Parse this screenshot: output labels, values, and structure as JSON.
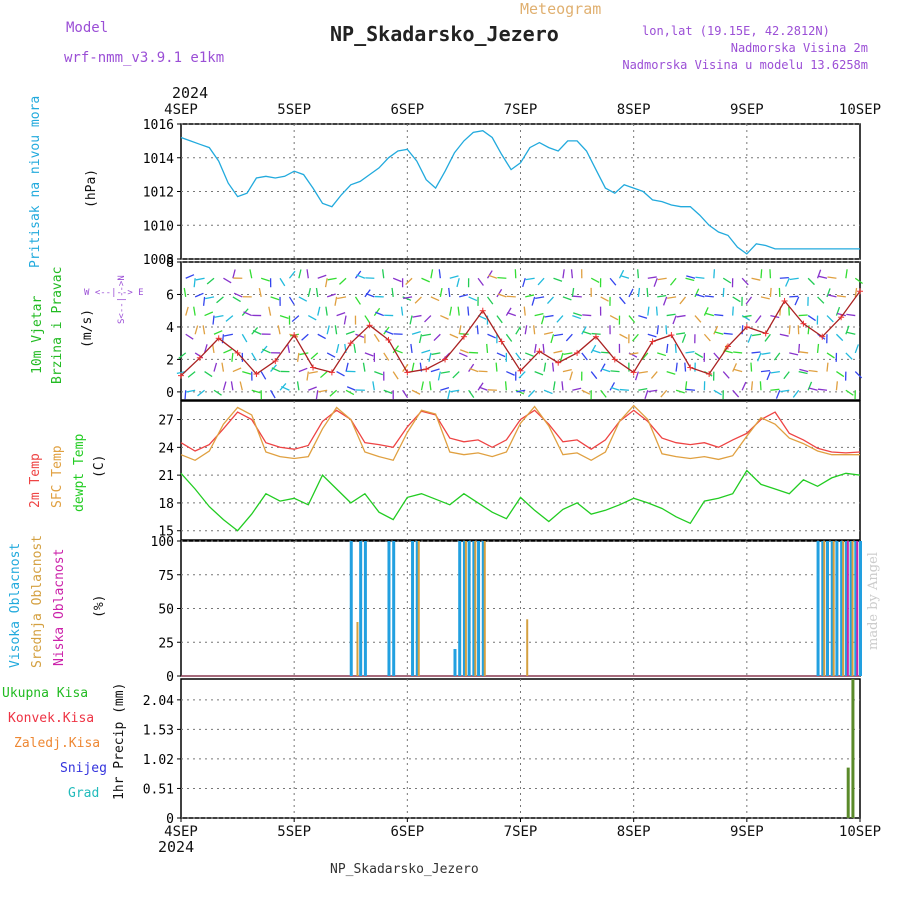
{
  "header": {
    "model_label": "Model",
    "model_name": "wrf-nmm_v3.9.1 e1km",
    "meteogram": "Meteogram",
    "station": "NP_Skadarsko_Jezero",
    "lonlat": "lon,lat (19.15E, 42.2812N)",
    "elevation": "Nadmorska Visina 2m",
    "model_elevation": "Nadmorska Visina u modelu 13.6258m"
  },
  "footer": {
    "station": "NP_Skadarsko_Jezero",
    "made_by": "made by Angel"
  },
  "time_axis": {
    "year": "2024",
    "labels": [
      "4SEP",
      "5SEP",
      "6SEP",
      "7SEP",
      "8SEP",
      "9SEP",
      "10SEP"
    ],
    "start": 0,
    "end": 144
  },
  "panels_labels": {
    "pressure": {
      "name": "Pritisak na nivou mora",
      "unit": "(hPa)",
      "color": "#22aadd"
    },
    "wind": {
      "name1": "10m Vjetar",
      "name2": "Brzina i Pravac",
      "unit": "(m/s)",
      "color": "#22bb22",
      "compass": "W <--|--> E",
      "compass_ns": "S<--|-->N"
    },
    "temp": {
      "l1": "2m Temp",
      "l2": "SFC Temp",
      "l3": "dewpt Temp",
      "unit": "(C)",
      "c1": "#ee4444",
      "c2": "#e0a040",
      "c3": "#22cc22"
    },
    "cloud": {
      "l1": "Visoka Oblacnost",
      "l2": "Srednja Oblacnost",
      "l3": "Niska Oblacnost",
      "unit": "(%)",
      "c1": "#22aadd",
      "c2": "#d4a040",
      "c3": "#cc22aa"
    },
    "precip": {
      "l1": "Ukupna Kisa",
      "l2": "Konvek.Kisa",
      "l3": "Zaledj.Kisa",
      "l4": "Snijeg",
      "l5": "Grad",
      "unit": "1hr Precip (mm)",
      "c1": "#22bb22",
      "c2": "#ee3344",
      "c3": "#ee8833",
      "c4": "#3333dd",
      "c5": "#22bbbb"
    }
  },
  "chart_data": [
    {
      "type": "line",
      "name": "pressure",
      "ylabel": "(hPa)",
      "ylim": [
        1008,
        1016
      ],
      "yticks": [
        1008,
        1010,
        1012,
        1014,
        1016
      ],
      "x": [
        0,
        2,
        4,
        6,
        8,
        10,
        12,
        14,
        16,
        18,
        20,
        22,
        24,
        26,
        28,
        30,
        32,
        34,
        36,
        38,
        40,
        42,
        44,
        46,
        48,
        50,
        52,
        54,
        56,
        58,
        60,
        62,
        64,
        66,
        68,
        70,
        72,
        74,
        76,
        78,
        80,
        82,
        84,
        86,
        88,
        90,
        92,
        94,
        96,
        98,
        100,
        102,
        104,
        106,
        108,
        110,
        112,
        114,
        116,
        118,
        120,
        122,
        124,
        126,
        128,
        130,
        132,
        134,
        136,
        138,
        140,
        142,
        144
      ],
      "series": [
        {
          "values": [
            1015.2,
            1015.0,
            1014.8,
            1014.6,
            1013.8,
            1012.5,
            1011.7,
            1011.9,
            1012.8,
            1012.9,
            1012.8,
            1012.9,
            1013.2,
            1013.0,
            1012.2,
            1011.3,
            1011.1,
            1011.8,
            1012.4,
            1012.6,
            1013.0,
            1013.4,
            1014.0,
            1014.4,
            1014.5,
            1013.8,
            1012.7,
            1012.2,
            1013.2,
            1014.3,
            1015.0,
            1015.5,
            1015.6,
            1015.2,
            1014.2,
            1013.3,
            1013.7,
            1014.6,
            1014.9,
            1014.6,
            1014.4,
            1015.0,
            1015.0,
            1014.4,
            1013.3,
            1012.2,
            1011.9,
            1012.4,
            1012.2,
            1012.0,
            1011.5,
            1011.4,
            1011.2,
            1011.1,
            1011.1,
            1010.6,
            1010.0,
            1009.6,
            1009.4,
            1008.7,
            1008.3,
            1008.9,
            1008.8,
            1008.6,
            1008.6,
            1008.6,
            1008.6,
            1008.6,
            1008.6,
            1008.6,
            1008.6,
            1008.6,
            1008.6
          ]
        }
      ]
    },
    {
      "type": "line",
      "name": "wind",
      "ylabel": "(m/s)",
      "ylim": [
        -0.5,
        8
      ],
      "yticks": [
        0,
        2,
        4,
        6,
        8
      ],
      "x": [
        0,
        4,
        8,
        12,
        16,
        20,
        24,
        28,
        32,
        36,
        40,
        44,
        48,
        52,
        56,
        60,
        64,
        68,
        72,
        76,
        80,
        84,
        88,
        92,
        96,
        100,
        104,
        108,
        112,
        116,
        120,
        124,
        128,
        132,
        136,
        140,
        144
      ],
      "series": [
        {
          "values": [
            1.0,
            2.1,
            3.3,
            2.4,
            1.1,
            1.9,
            3.5,
            1.5,
            1.2,
            3.0,
            4.1,
            3.2,
            1.2,
            1.4,
            2.0,
            3.4,
            5.0,
            3.1,
            1.3,
            2.5,
            1.8,
            2.4,
            3.4,
            2.0,
            1.2,
            3.1,
            3.5,
            1.5,
            1.1,
            2.8,
            4.0,
            3.6,
            5.6,
            4.2,
            3.4,
            4.6,
            6.2
          ]
        }
      ]
    },
    {
      "type": "line",
      "name": "temperature",
      "ylabel": "(C)",
      "ylim": [
        14,
        29
      ],
      "yticks": [
        15,
        18,
        21,
        24,
        27
      ],
      "x": [
        0,
        3,
        6,
        9,
        12,
        15,
        18,
        21,
        24,
        27,
        30,
        33,
        36,
        39,
        42,
        45,
        48,
        51,
        54,
        57,
        60,
        63,
        66,
        69,
        72,
        75,
        78,
        81,
        84,
        87,
        90,
        93,
        96,
        99,
        102,
        105,
        108,
        111,
        114,
        117,
        120,
        123,
        126,
        129,
        132,
        135,
        138,
        141,
        144
      ],
      "series": [
        {
          "name": "2m Temp",
          "values": [
            24.5,
            23.6,
            24.3,
            26.0,
            27.8,
            27.0,
            24.5,
            24.0,
            23.8,
            24.2,
            26.8,
            28.0,
            27.0,
            24.5,
            24.3,
            24.0,
            26.2,
            27.9,
            27.5,
            25.0,
            24.6,
            24.8,
            24.0,
            24.8,
            27.0,
            28.0,
            26.5,
            24.6,
            24.8,
            23.8,
            24.8,
            26.8,
            28.0,
            26.8,
            25.0,
            24.5,
            24.3,
            24.5,
            24.0,
            24.8,
            25.5,
            27.0,
            27.8,
            25.5,
            24.8,
            23.9,
            23.5,
            23.4,
            23.5
          ]
        },
        {
          "name": "SFC Temp",
          "values": [
            23.2,
            22.6,
            23.6,
            26.5,
            28.3,
            27.5,
            23.5,
            23.0,
            22.8,
            23.0,
            26.0,
            28.3,
            27.0,
            23.5,
            23.0,
            22.6,
            25.6,
            28.0,
            27.6,
            23.5,
            23.2,
            23.4,
            23.0,
            23.5,
            26.6,
            28.4,
            26.3,
            23.2,
            23.4,
            22.6,
            23.5,
            26.8,
            28.5,
            27.0,
            23.3,
            23.0,
            22.8,
            23.0,
            22.7,
            23.1,
            25.2,
            27.2,
            26.5,
            25.0,
            24.4,
            23.6,
            23.2,
            23.2,
            23.2
          ]
        },
        {
          "name": "dewpt Temp",
          "values": [
            21.2,
            19.5,
            17.6,
            16.2,
            15.0,
            16.8,
            19.0,
            18.2,
            18.5,
            17.8,
            21.0,
            19.5,
            18.0,
            19.0,
            17.0,
            16.2,
            18.6,
            19.0,
            18.4,
            17.8,
            19.0,
            18.0,
            17.0,
            16.3,
            18.6,
            17.2,
            16.0,
            17.3,
            18.0,
            16.8,
            17.2,
            17.8,
            18.5,
            18.0,
            17.4,
            16.5,
            15.8,
            18.2,
            18.5,
            19.0,
            21.5,
            20.0,
            19.5,
            19.0,
            20.5,
            19.8,
            20.7,
            21.2,
            21.0
          ]
        }
      ]
    },
    {
      "type": "bar",
      "name": "cloud",
      "ylabel": "(%)",
      "ylim": [
        0,
        100
      ],
      "yticks": [
        0,
        25,
        50,
        75,
        100
      ],
      "series": [
        {
          "name": "Visoka Oblacnost",
          "x": [
            36,
            38,
            39,
            44,
            45,
            49,
            50,
            58,
            59,
            60,
            61,
            62,
            63,
            64,
            135,
            136,
            137,
            138,
            139,
            140,
            141,
            142,
            143,
            144
          ],
          "values": [
            100,
            100,
            100,
            100,
            100,
            100,
            100,
            20,
            100,
            100,
            100,
            100,
            100,
            100,
            100,
            100,
            100,
            100,
            100,
            100,
            100,
            100,
            100,
            100
          ]
        },
        {
          "name": "Srednja Oblacnost",
          "x": [
            37,
            50,
            60,
            62,
            64,
            73,
            136,
            138,
            140,
            142
          ],
          "values": [
            40,
            100,
            100,
            100,
            100,
            42,
            100,
            100,
            100,
            100
          ]
        },
        {
          "name": "Niska Oblacnost",
          "x": [
            141,
            143
          ],
          "values": [
            100,
            100
          ]
        }
      ]
    },
    {
      "type": "bar",
      "name": "precip",
      "ylabel": "1hr Precip (mm)",
      "ylim": [
        0,
        2.4
      ],
      "yticks": [
        0,
        0.51,
        1.02,
        1.53,
        2.04
      ],
      "series": [
        {
          "name": "Ukupna Kisa",
          "x": [
            141.5,
            142.5
          ],
          "values": [
            0.87,
            2.4
          ]
        }
      ]
    }
  ]
}
